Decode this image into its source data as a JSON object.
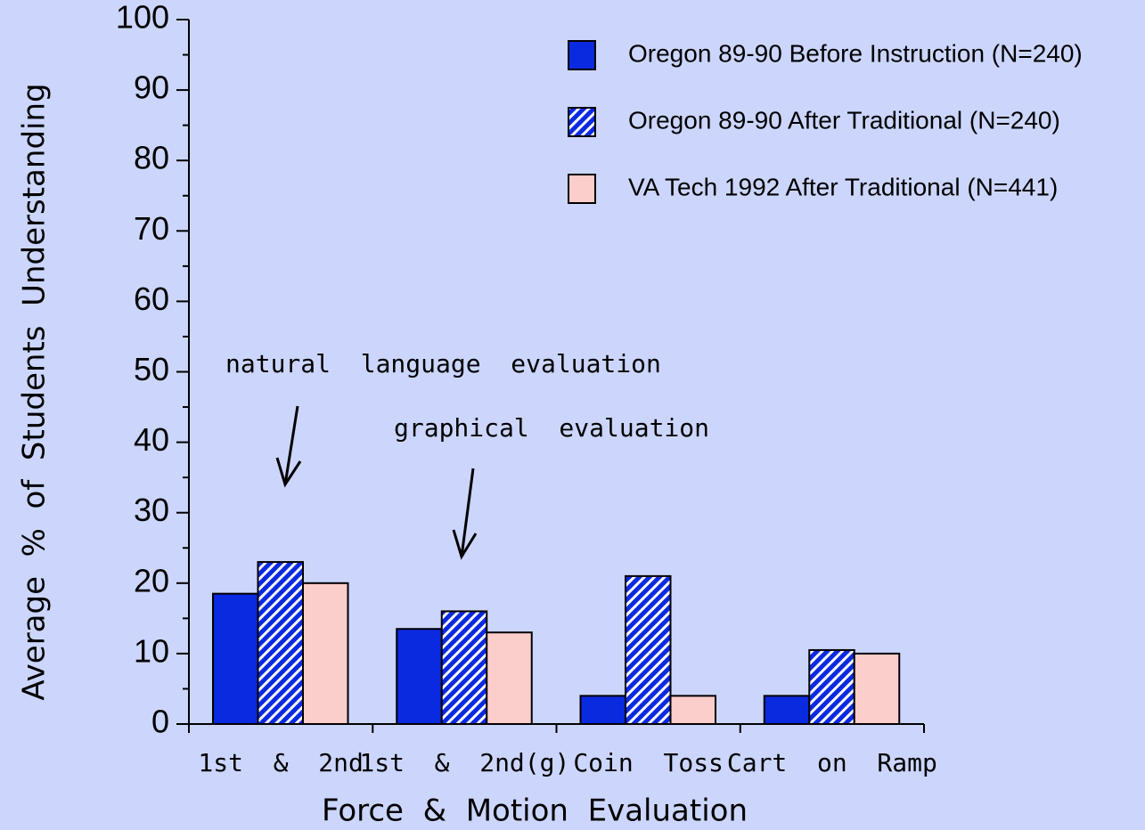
{
  "chart_data": {
    "type": "bar",
    "x_label": "Force  &  Motion  Evaluation",
    "y_label": "Average  %  of  Students  Understanding",
    "categories": [
      "1st  &  2nd",
      "1st  &  2nd(g)",
      "Coin  Toss",
      "Cart  on  Ramp"
    ],
    "series": [
      {
        "name": "Oregon 89-90 Before Instruction (N=240)",
        "color": "#0a2ae0",
        "values": [
          18.5,
          13.5,
          4,
          4
        ]
      },
      {
        "name": "Oregon 89-90 After Traditional (N=240)",
        "color": "#0a2ae0",
        "pattern": "hatch",
        "values": [
          23,
          16,
          21,
          10.5
        ]
      },
      {
        "name": "VA Tech 1992 After Traditional (N=441)",
        "color": "#fbcdcb",
        "values": [
          20,
          13,
          4,
          10
        ]
      }
    ],
    "annotations": [
      "natural  language  evaluation",
      "graphical  evaluation"
    ],
    "ylim": [
      0,
      100
    ],
    "yticks": [
      0,
      10,
      20,
      30,
      40,
      50,
      60,
      70,
      80,
      90,
      100
    ],
    "yminorticks": [
      5,
      15,
      25,
      35,
      45,
      55,
      65,
      75,
      85,
      95
    ],
    "legend": "upper right"
  }
}
